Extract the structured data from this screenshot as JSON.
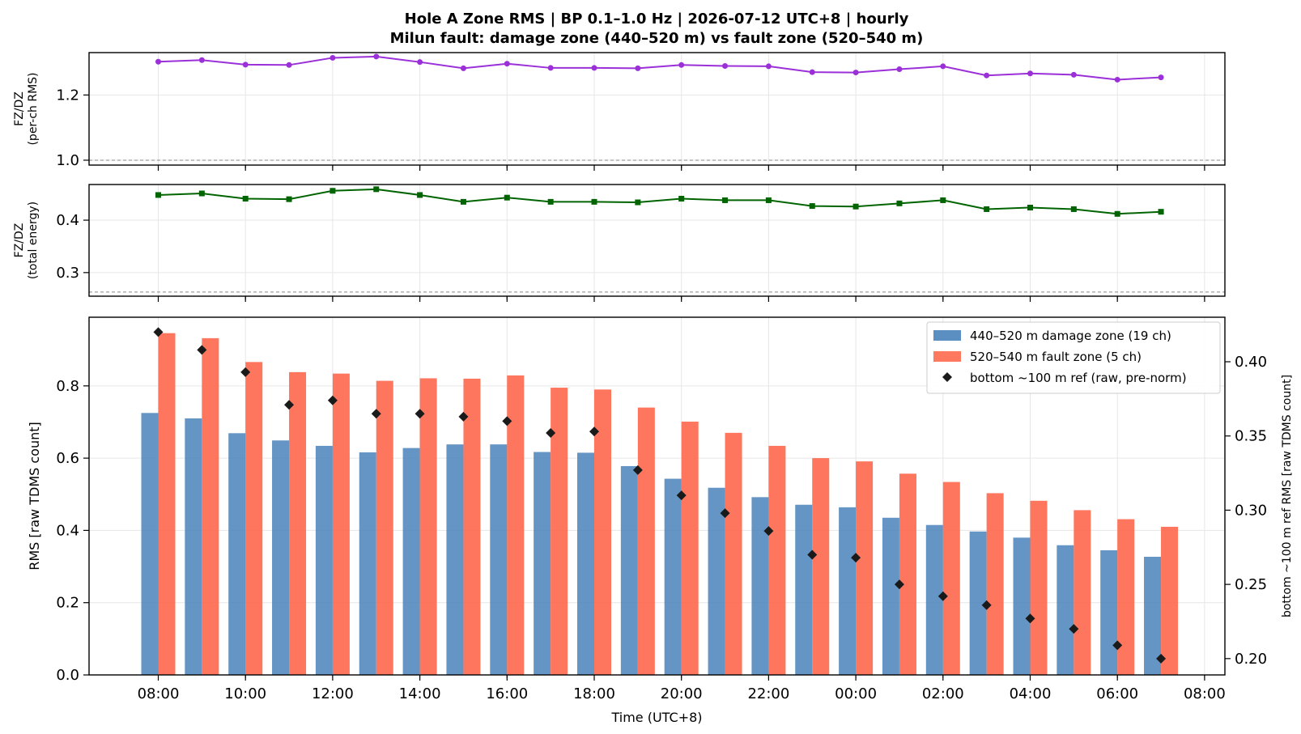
{
  "colors": {
    "ratio_rms": "#9b30d9",
    "ratio_energy": "#006400",
    "damage_zone": "#4a83ba",
    "fault_zone": "#fe6a4f",
    "reference": "#1a1a1a",
    "grid": "#e6e6e6",
    "refline": "#888888"
  },
  "chart_data": [
    {
      "type": "line",
      "title": "Hole A Zone RMS  |  BP 0.1–1.0 Hz  |  2026-07-12 UTC+8  |  hourly",
      "subtitle": "Milun fault: damage zone (440–520 m) vs fault zone (520–540 m)",
      "ylabel_lines": [
        "FZ/DZ",
        "(per-ch RMS)"
      ],
      "ylim": [
        0.985,
        1.33
      ],
      "yticks": [
        1.0,
        1.2
      ],
      "ytick_labels": [
        "1.0",
        "1.2"
      ],
      "reference_line": 1.0,
      "marker": "circle",
      "x": [
        "08:00",
        "09:00",
        "10:00",
        "11:00",
        "12:00",
        "13:00",
        "14:00",
        "15:00",
        "16:00",
        "17:00",
        "18:00",
        "19:00",
        "20:00",
        "21:00",
        "22:00",
        "23:00",
        "00:00",
        "01:00",
        "02:00",
        "03:00",
        "04:00",
        "05:00",
        "06:00",
        "07:00"
      ],
      "values": [
        1.302,
        1.307,
        1.293,
        1.292,
        1.314,
        1.318,
        1.301,
        1.282,
        1.296,
        1.283,
        1.283,
        1.282,
        1.292,
        1.289,
        1.288,
        1.27,
        1.269,
        1.279,
        1.288,
        1.26,
        1.266,
        1.262,
        1.247,
        1.254
      ]
    },
    {
      "type": "line",
      "ylabel_lines": [
        "FZ/DZ",
        "(total energy)"
      ],
      "ylim": [
        0.255,
        0.468
      ],
      "yticks": [
        0.3,
        0.4
      ],
      "ytick_labels": [
        "0.3",
        "0.4"
      ],
      "reference_line": 0.263,
      "marker": "square",
      "x": [
        "08:00",
        "09:00",
        "10:00",
        "11:00",
        "12:00",
        "13:00",
        "14:00",
        "15:00",
        "16:00",
        "17:00",
        "18:00",
        "19:00",
        "20:00",
        "21:00",
        "22:00",
        "23:00",
        "00:00",
        "01:00",
        "02:00",
        "03:00",
        "04:00",
        "05:00",
        "06:00",
        "07:00"
      ],
      "values": [
        0.448,
        0.451,
        0.441,
        0.44,
        0.456,
        0.459,
        0.448,
        0.435,
        0.443,
        0.435,
        0.435,
        0.434,
        0.441,
        0.438,
        0.438,
        0.427,
        0.426,
        0.432,
        0.438,
        0.421,
        0.424,
        0.421,
        0.412,
        0.416
      ]
    },
    {
      "type": "bar",
      "xlabel": "Time (UTC+8)",
      "ylabel": "RMS  [raw TDMS count]",
      "y2label": "bottom ~100 m ref RMS  [raw TDMS count]",
      "ylim": [
        0,
        0.99
      ],
      "yticks": [
        0.0,
        0.2,
        0.4,
        0.6,
        0.8
      ],
      "ytick_labels": [
        "0.0",
        "0.2",
        "0.4",
        "0.6",
        "0.8"
      ],
      "y2lim": [
        0.189,
        0.43
      ],
      "y2ticks": [
        0.2,
        0.25,
        0.3,
        0.35,
        0.4
      ],
      "y2tick_labels": [
        "0.20",
        "0.25",
        "0.30",
        "0.35",
        "0.40"
      ],
      "xtick_labels": [
        "08:00",
        "10:00",
        "12:00",
        "14:00",
        "16:00",
        "18:00",
        "20:00",
        "22:00",
        "00:00",
        "02:00",
        "04:00",
        "06:00",
        "08:00"
      ],
      "categories": [
        "08:00",
        "09:00",
        "10:00",
        "11:00",
        "12:00",
        "13:00",
        "14:00",
        "15:00",
        "16:00",
        "17:00",
        "18:00",
        "19:00",
        "20:00",
        "21:00",
        "22:00",
        "23:00",
        "00:00",
        "01:00",
        "02:00",
        "03:00",
        "04:00",
        "05:00",
        "06:00",
        "07:00"
      ],
      "series": [
        {
          "name": "440–520 m  damage zone (19 ch)",
          "kind": "bar",
          "values": [
            0.725,
            0.71,
            0.669,
            0.649,
            0.634,
            0.616,
            0.628,
            0.638,
            0.638,
            0.617,
            0.615,
            0.578,
            0.543,
            0.518,
            0.492,
            0.471,
            0.464,
            0.435,
            0.415,
            0.397,
            0.38,
            0.359,
            0.345,
            0.327
          ]
        },
        {
          "name": "520–540 m  fault zone (5 ch)",
          "kind": "bar",
          "values": [
            0.946,
            0.932,
            0.866,
            0.838,
            0.834,
            0.814,
            0.821,
            0.82,
            0.829,
            0.795,
            0.79,
            0.74,
            0.701,
            0.67,
            0.634,
            0.6,
            0.591,
            0.557,
            0.534,
            0.503,
            0.482,
            0.456,
            0.431,
            0.41
          ]
        },
        {
          "name": "bottom ~100 m ref (raw, pre-norm)",
          "kind": "scatter",
          "axis": "right",
          "values": [
            0.42,
            0.408,
            0.393,
            0.371,
            0.374,
            0.365,
            0.365,
            0.363,
            0.36,
            0.352,
            0.353,
            0.327,
            0.31,
            0.298,
            0.286,
            0.27,
            0.268,
            0.25,
            0.242,
            0.236,
            0.227,
            0.22,
            0.209,
            0.2
          ]
        }
      ],
      "legend_position": "upper-right",
      "grid": true
    }
  ]
}
